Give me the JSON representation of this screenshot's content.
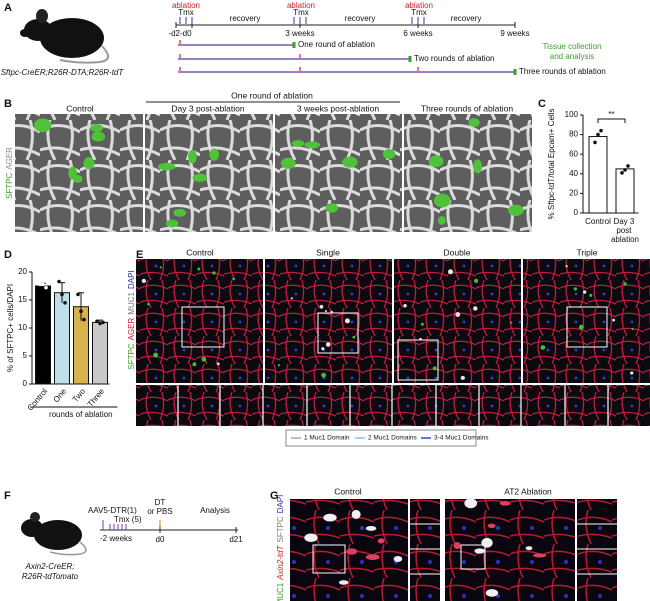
{
  "panel_labels": [
    "A",
    "B",
    "C",
    "D",
    "E",
    "F",
    "G"
  ],
  "panel_a": {
    "ablation_labels": [
      "ablation",
      "ablation",
      "ablation"
    ],
    "tmx_labels": [
      "Tmx",
      "Tmx",
      "Tmx"
    ],
    "recovery_labels": [
      "recovery",
      "recovery",
      "recovery"
    ],
    "timepoints": [
      "-d2-d0",
      "3 weeks",
      "6 weeks",
      "9 weeks"
    ],
    "rounds": [
      "One round of ablation",
      "Two rounds of ablation",
      "Three rounds of ablation"
    ],
    "collection": [
      "Tissue collection",
      "and analysis"
    ],
    "genotype": "Sftpc-CreER;R26R-DTA;R26R-tdT"
  },
  "panel_b": {
    "group_header": "One round of ablation",
    "columns": [
      "Control",
      "Day 3 post-ablation",
      "3 weeks post-ablation",
      "Three rounds of ablation"
    ],
    "stain_labels": [
      "SFTPC",
      "AGER"
    ]
  },
  "chart_data": [
    {
      "type": "bar",
      "ylabel": "% Sftpc-tdT/total Epcam+ Cells",
      "categories": [
        "Control",
        "Day 3 post ablation"
      ],
      "values": [
        78,
        45
      ],
      "points": [
        [
          72,
          80,
          84
        ],
        [
          41,
          44,
          48
        ]
      ],
      "color": "#ffffff",
      "annotation": "**",
      "ylim": [
        0,
        100
      ],
      "yticks": [
        0,
        20,
        40,
        60,
        80,
        100
      ]
    },
    {
      "type": "bar",
      "ylabel": "% of SFTPC+ cells/DAPI",
      "xlabel": "rounds of ablation",
      "categories": [
        "Control",
        "One",
        "Two",
        "Three"
      ],
      "values": [
        17.5,
        16.3,
        13.8,
        11
      ],
      "errors": [
        0.5,
        1.8,
        2.5,
        0.4
      ],
      "points": [
        [
          17.8,
          17.8,
          17.2
        ],
        [
          18.3,
          16,
          14.5
        ],
        [
          16,
          13,
          11.5
        ],
        [
          11.2,
          10.8,
          11
        ]
      ],
      "colors": [
        "#000000",
        "#bfe0ea",
        "#d6b34c",
        "#c9c9c9"
      ],
      "ylim": [
        0,
        20
      ],
      "yticks": [
        0,
        5,
        10,
        15,
        20
      ]
    }
  ],
  "panel_e": {
    "columns": [
      "Control",
      "Single",
      "Double",
      "Triple"
    ],
    "stain_labels": [
      "SFTPC",
      "AGER",
      "MUC1",
      "DAPI"
    ],
    "legend": [
      "1 Muc1 Domain",
      "2 Muc1 Domains",
      "3-4 Muc1 Domains"
    ]
  },
  "panel_f": {
    "labels": [
      "AAV5-DTR(1)",
      "Tmx (5)",
      "-2 weeks",
      "DT",
      "or PBS",
      "d0",
      "Analysis",
      "d21"
    ],
    "genotype": [
      "Axin2-CreER;",
      "R26R-tdTomato"
    ]
  },
  "panel_g": {
    "columns": [
      "Control",
      "AT2 Ablation"
    ],
    "stain_labels": [
      "MUC1",
      "Axin2-tdT",
      "SFTPC",
      "DAPI"
    ]
  }
}
